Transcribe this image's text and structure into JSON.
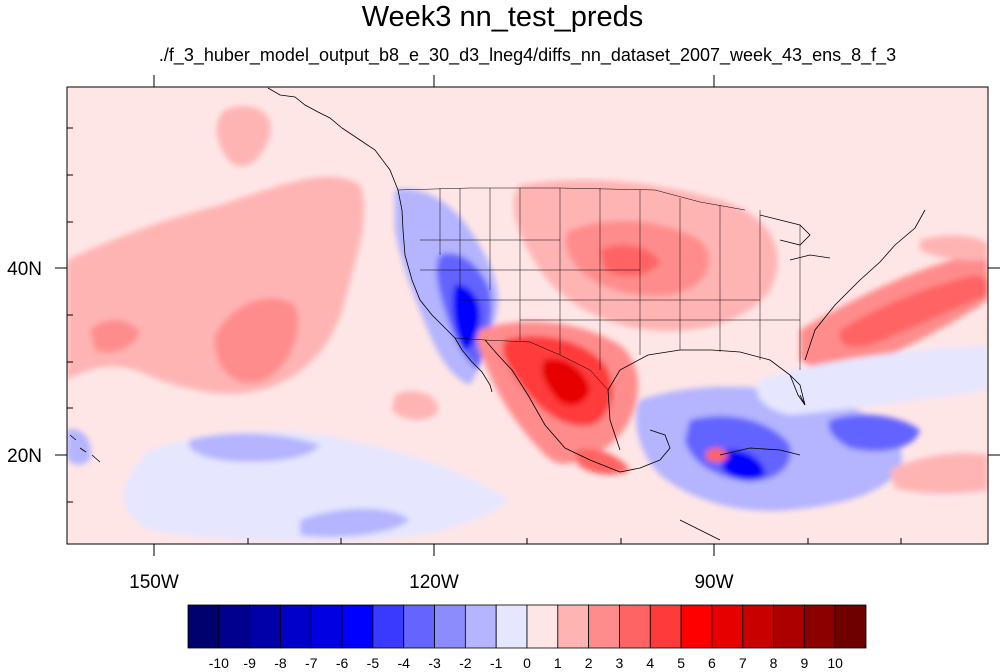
{
  "title": "Week3 nn_test_preds",
  "subtitle": "./f_3_huber_model_output_b8_e_30_d3_lneg4/diffs_nn_dataset_2007_week_43_ens_8_f_3",
  "map": {
    "lon_range": [
      -160,
      -62
    ],
    "lat_range": [
      11,
      60
    ],
    "x_tick_labels": [
      "150W",
      "120W",
      "90W"
    ],
    "y_tick_labels": [
      "40N",
      "20N"
    ]
  },
  "colorbar": {
    "labels": [
      "-10",
      "-9",
      "-8",
      "-7",
      "-6",
      "-5",
      "-4",
      "-3",
      "-2",
      "-1",
      "0",
      "1",
      "2",
      "3",
      "4",
      "5",
      "6",
      "7",
      "8",
      "9",
      "10"
    ],
    "colors": [
      "#00006e",
      "#00008c",
      "#0000a8",
      "#0000c8",
      "#0000e0",
      "#0000ff",
      "#3a3aff",
      "#6464ff",
      "#8c8cff",
      "#b4b4ff",
      "#e6e6ff",
      "#ffe6e6",
      "#ffb4b4",
      "#ff8c8c",
      "#ff6464",
      "#ff3a3a",
      "#ff0000",
      "#e60000",
      "#c80000",
      "#aa0000",
      "#8c0000",
      "#6e0000"
    ]
  }
}
